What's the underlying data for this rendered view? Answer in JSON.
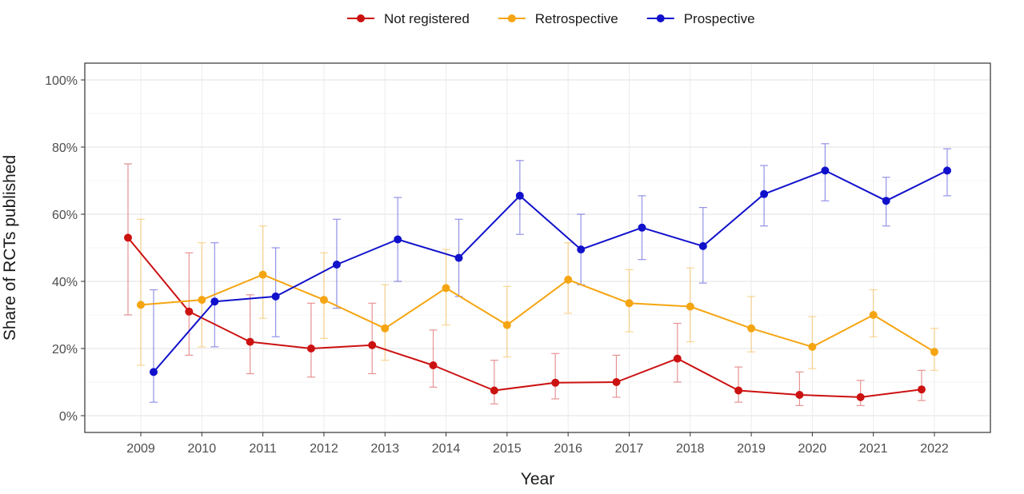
{
  "chart_data": {
    "type": "line",
    "xlabel": "Year",
    "ylabel": "Share of RCTs published",
    "x": [
      2009,
      2010,
      2011,
      2012,
      2013,
      2014,
      2015,
      2016,
      2017,
      2018,
      2019,
      2020,
      2021,
      2022
    ],
    "x_tick_labels": [
      "2009",
      "2010",
      "2011",
      "2012",
      "2013",
      "2014",
      "2015",
      "2016",
      "2017",
      "2018",
      "2019",
      "2020",
      "2021",
      "2022"
    ],
    "ylim": [
      0,
      1
    ],
    "y_ticks": [
      0,
      0.2,
      0.4,
      0.6,
      0.8,
      1.0
    ],
    "y_tick_labels": [
      "0%",
      "20%",
      "40%",
      "60%",
      "80%",
      "100%"
    ],
    "grid": true,
    "legend": {
      "position": "top"
    },
    "error_bars": true,
    "series": [
      {
        "name": "Not registered",
        "color": "#cc1111",
        "values": [
          0.53,
          0.31,
          0.22,
          0.2,
          0.21,
          0.15,
          0.075,
          0.098,
          0.1,
          0.17,
          0.075,
          0.062,
          0.055,
          0.078
        ],
        "lower": [
          0.3,
          0.18,
          0.125,
          0.115,
          0.125,
          0.085,
          0.035,
          0.05,
          0.055,
          0.1,
          0.04,
          0.03,
          0.03,
          0.045
        ],
        "upper": [
          0.75,
          0.485,
          0.36,
          0.335,
          0.335,
          0.255,
          0.165,
          0.185,
          0.18,
          0.275,
          0.145,
          0.13,
          0.105,
          0.135
        ]
      },
      {
        "name": "Retrospective",
        "color": "#f5a511",
        "values": [
          0.33,
          0.345,
          0.42,
          0.345,
          0.26,
          0.38,
          0.27,
          0.405,
          0.335,
          0.325,
          0.26,
          0.205,
          0.3,
          0.19
        ],
        "lower": [
          0.15,
          0.205,
          0.29,
          0.23,
          0.165,
          0.27,
          0.175,
          0.305,
          0.25,
          0.22,
          0.19,
          0.14,
          0.235,
          0.135
        ],
        "upper": [
          0.585,
          0.515,
          0.565,
          0.485,
          0.39,
          0.495,
          0.385,
          0.515,
          0.435,
          0.44,
          0.355,
          0.295,
          0.375,
          0.26
        ]
      },
      {
        "name": "Prospective",
        "color": "#1111cc",
        "values": [
          0.13,
          0.34,
          0.355,
          0.45,
          0.525,
          0.47,
          0.655,
          0.495,
          0.56,
          0.505,
          0.66,
          0.73,
          0.64,
          0.73
        ],
        "lower": [
          0.04,
          0.205,
          0.235,
          0.32,
          0.4,
          0.355,
          0.54,
          0.39,
          0.465,
          0.395,
          0.565,
          0.64,
          0.565,
          0.655
        ],
        "upper": [
          0.375,
          0.515,
          0.5,
          0.585,
          0.65,
          0.585,
          0.76,
          0.6,
          0.655,
          0.62,
          0.745,
          0.81,
          0.71,
          0.795
        ]
      }
    ]
  }
}
